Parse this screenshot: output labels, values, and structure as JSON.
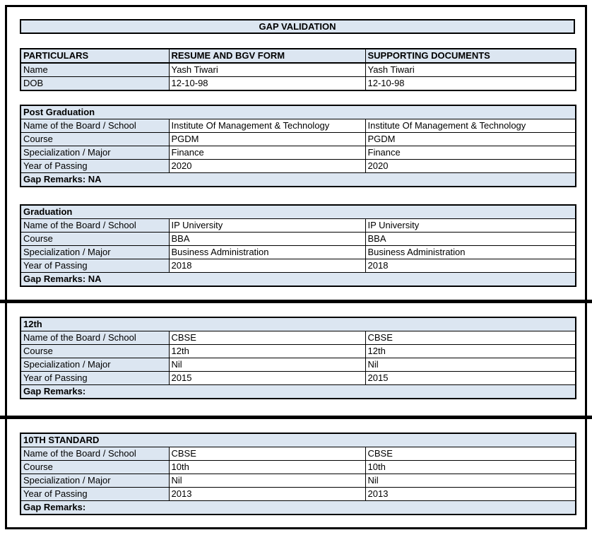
{
  "title": "GAP VALIDATION",
  "colors": {
    "header_fill": "#dce6f1",
    "border": "#000000",
    "text": "#000000",
    "background": "#ffffff"
  },
  "particulars": {
    "columns": [
      "PARTICULARS",
      "RESUME AND BGV FORM",
      "SUPPORTING DOCUMENTS"
    ],
    "rows": [
      {
        "label": "Name",
        "resume": "Yash Tiwari",
        "supporting": "Yash Tiwari"
      },
      {
        "label": "DOB",
        "resume": "12-10-98",
        "supporting": "12-10-98"
      }
    ]
  },
  "sections": [
    {
      "title": "Post Graduation",
      "rows": [
        {
          "label": "Name of the Board / School",
          "resume": "Institute Of Management & Technology",
          "supporting": "Institute Of Management & Technology"
        },
        {
          "label": "Course",
          "resume": "PGDM",
          "supporting": "PGDM"
        },
        {
          "label": "Specialization / Major",
          "resume": "Finance",
          "supporting": "Finance"
        },
        {
          "label": "Year of Passing",
          "resume": "2020",
          "supporting": "2020"
        }
      ],
      "gap_remarks": "Gap Remarks: NA"
    },
    {
      "title": "Graduation",
      "rows": [
        {
          "label": "Name of the Board / School",
          "resume": "IP University",
          "supporting": "IP University"
        },
        {
          "label": "Course",
          "resume": "BBA",
          "supporting": "BBA"
        },
        {
          "label": "Specialization / Major",
          "resume": "Business Administration",
          "supporting": "Business Administration"
        },
        {
          "label": "Year of Passing",
          "resume": "2018",
          "supporting": "2018"
        }
      ],
      "gap_remarks": "Gap Remarks: NA"
    },
    {
      "title": "12th",
      "rows": [
        {
          "label": "Name of the Board / School",
          "resume": "CBSE",
          "supporting": "CBSE"
        },
        {
          "label": "Course",
          "resume": "12th",
          "supporting": "12th"
        },
        {
          "label": "Specialization / Major",
          "resume": "Nil",
          "supporting": "Nil"
        },
        {
          "label": "Year of Passing",
          "resume": "2015",
          "supporting": "2015"
        }
      ],
      "gap_remarks": "Gap Remarks:"
    },
    {
      "title": "10TH STANDARD",
      "rows": [
        {
          "label": "Name of the Board / School",
          "resume": "CBSE",
          "supporting": "CBSE"
        },
        {
          "label": "Course",
          "resume": "10th",
          "supporting": "10th"
        },
        {
          "label": "Specialization / Major",
          "resume": "Nil",
          "supporting": "Nil"
        },
        {
          "label": "Year of Passing",
          "resume": "2013",
          "supporting": "2013"
        }
      ],
      "gap_remarks": "Gap Remarks:"
    }
  ]
}
